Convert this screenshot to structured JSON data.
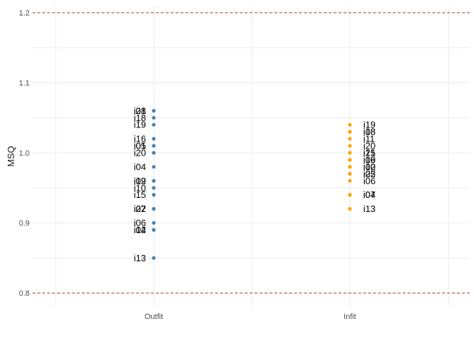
{
  "chart_data": {
    "type": "scatter",
    "ylabel": "MSQ",
    "xlabel": "",
    "ylim": [
      0.78,
      1.21
    ],
    "yticks": [
      0.8,
      0.9,
      1.0,
      1.1,
      1.2
    ],
    "categories": [
      "Outfit",
      "Infit"
    ],
    "grid": true,
    "reference_lines": [
      {
        "y": 0.8,
        "color": "#b03a2e",
        "style": "dashed"
      },
      {
        "y": 1.2,
        "color": "#b03a2e",
        "style": "dashed"
      }
    ],
    "series": [
      {
        "name": "Outfit",
        "color": "#4682b4",
        "label_side": "left",
        "points": [
          {
            "label": "i08",
            "y": 1.06
          },
          {
            "label": "i21",
            "y": 1.06
          },
          {
            "label": "i18",
            "y": 1.05
          },
          {
            "label": "i19",
            "y": 1.04
          },
          {
            "label": "i16",
            "y": 1.02
          },
          {
            "label": "i01",
            "y": 1.01
          },
          {
            "label": "i05",
            "y": 1.01
          },
          {
            "label": "i20",
            "y": 1.0
          },
          {
            "label": "i04",
            "y": 0.98
          },
          {
            "label": "i09",
            "y": 0.96
          },
          {
            "label": "i12",
            "y": 0.96
          },
          {
            "label": "i10",
            "y": 0.95
          },
          {
            "label": "i15",
            "y": 0.94
          },
          {
            "label": "i07",
            "y": 0.92
          },
          {
            "label": "i22",
            "y": 0.92
          },
          {
            "label": "i06",
            "y": 0.9
          },
          {
            "label": "i02",
            "y": 0.89
          },
          {
            "label": "i14",
            "y": 0.89
          },
          {
            "label": "i13",
            "y": 0.85
          }
        ]
      },
      {
        "name": "Infit",
        "color": "#ffa500",
        "label_side": "right",
        "points": [
          {
            "label": "i19",
            "y": 1.04
          },
          {
            "label": "i08",
            "y": 1.03
          },
          {
            "label": "i18",
            "y": 1.03
          },
          {
            "label": "i11",
            "y": 1.02
          },
          {
            "label": "i20",
            "y": 1.01
          },
          {
            "label": "i21",
            "y": 1.0
          },
          {
            "label": "i15",
            "y": 1.0
          },
          {
            "label": "i16",
            "y": 0.99
          },
          {
            "label": "i09",
            "y": 0.99
          },
          {
            "label": "i02",
            "y": 0.98
          },
          {
            "label": "i10",
            "y": 0.98
          },
          {
            "label": "i22",
            "y": 0.97
          },
          {
            "label": "i05",
            "y": 0.97
          },
          {
            "label": "i06",
            "y": 0.96
          },
          {
            "label": "i07",
            "y": 0.94
          },
          {
            "label": "i04",
            "y": 0.94
          },
          {
            "label": "i13",
            "y": 0.92
          }
        ]
      }
    ]
  }
}
